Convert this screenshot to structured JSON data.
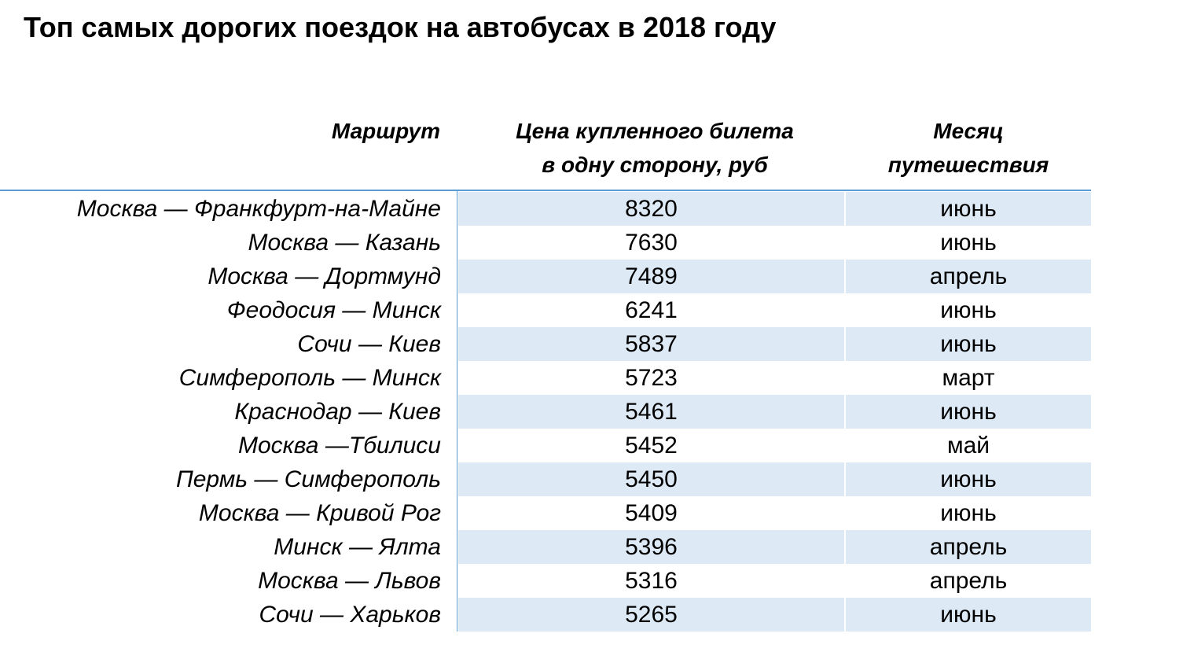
{
  "title": "Топ самых дорогих поездок на автобусах в 2018 году",
  "headers": {
    "route": "Маршрут",
    "price_line1": "Цена купленного билета",
    "price_line2": "в одну сторону, руб",
    "month_line1": "Месяц",
    "month_line2": "путешествия"
  },
  "rows": [
    {
      "route": "Москва — Франкфурт-на-Майне",
      "price": "8320",
      "month": "июнь"
    },
    {
      "route": "Москва — Казань",
      "price": "7630",
      "month": "июнь"
    },
    {
      "route": "Москва — Дортмунд",
      "price": "7489",
      "month": "апрель"
    },
    {
      "route": "Феодосия — Минск",
      "price": "6241",
      "month": "июнь"
    },
    {
      "route": "Сочи — Киев",
      "price": "5837",
      "month": "июнь"
    },
    {
      "route": "Симферополь — Минск",
      "price": "5723",
      "month": "март"
    },
    {
      "route": "Краснодар — Киев",
      "price": "5461",
      "month": "июнь"
    },
    {
      "route": "Москва —Тбилиси",
      "price": "5452",
      "month": "май"
    },
    {
      "route": "Пермь — Симферополь",
      "price": "5450",
      "month": "июнь"
    },
    {
      "route": "Москва — Кривой Рог",
      "price": "5409",
      "month": "июнь"
    },
    {
      "route": "Минск — Ялта",
      "price": "5396",
      "month": "апрель"
    },
    {
      "route": "Москва — Львов",
      "price": "5316",
      "month": "апрель"
    },
    {
      "route": "Сочи — Харьков",
      "price": "5265",
      "month": "июнь"
    }
  ],
  "colors": {
    "rule": "#5b9bd5",
    "band": "#dde9f5"
  }
}
